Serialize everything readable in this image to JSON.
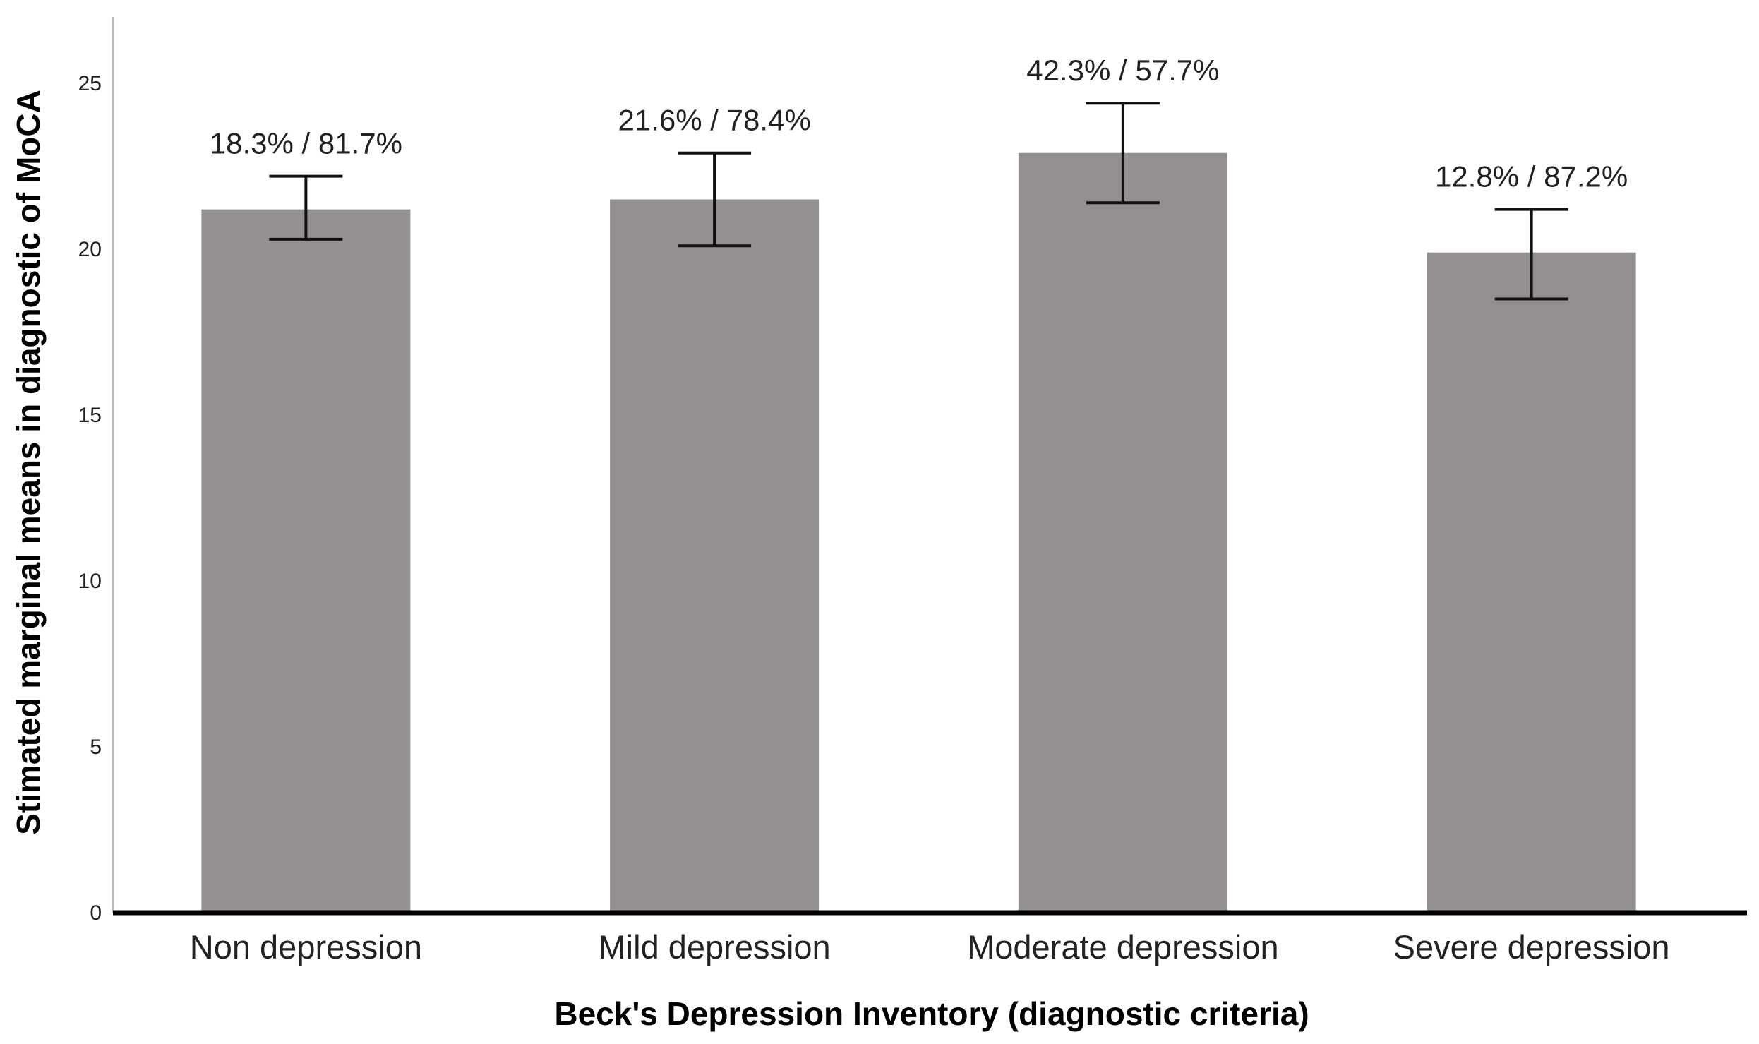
{
  "chart_data": {
    "type": "bar",
    "title": "",
    "xlabel": "Beck's Depression Inventory (diagnostic criteria)",
    "ylabel": "Stimated marginal means in diagnostic of MoCA",
    "ylim": [
      0,
      27
    ],
    "yticks": [
      "0",
      "5",
      "10",
      "15",
      "20",
      "25"
    ],
    "grid": false,
    "categories": [
      "Non depression",
      "Mild depression",
      "Moderate depression",
      "Severe depression"
    ],
    "values": [
      21.2,
      21.5,
      22.9,
      19.9
    ],
    "error_low": [
      20.3,
      20.1,
      21.4,
      18.5
    ],
    "error_high": [
      22.2,
      22.9,
      24.4,
      21.2
    ],
    "annotations": [
      "18.3% / 81.7%",
      "21.6% / 78.4%",
      "42.3% / 57.7%",
      "12.8% / 87.2%"
    ],
    "bar_color": "#949090",
    "error_color": "#111111",
    "axis_color": "#000000"
  }
}
